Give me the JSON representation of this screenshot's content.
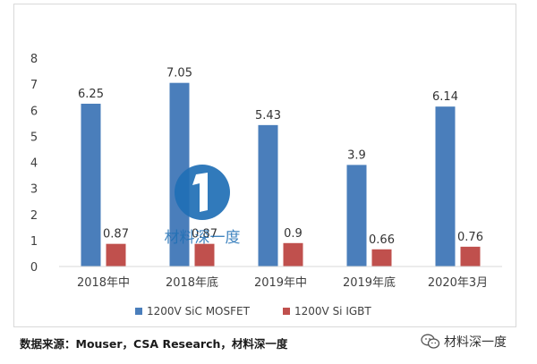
{
  "chart_data": {
    "type": "bar",
    "categories": [
      "2018年中",
      "2018年底",
      "2019年中",
      "2019年底",
      "2020年3月"
    ],
    "series": [
      {
        "name": "1200V SiC MOSFET",
        "values": [
          6.25,
          7.05,
          5.43,
          3.9,
          6.14
        ],
        "color": "#4a7ebb"
      },
      {
        "name": "1200V Si IGBT",
        "values": [
          0.87,
          0.87,
          0.9,
          0.66,
          0.76
        ],
        "color": "#c0504d"
      }
    ],
    "data_labels": [
      [
        "6.25",
        "7.05",
        "5.43",
        "3.9",
        "6.14"
      ],
      [
        "0.87",
        "0.87",
        "0.9",
        "0.66",
        "0.76"
      ]
    ],
    "ylim": [
      0,
      8
    ],
    "yticks": [
      "0",
      "1",
      "2",
      "3",
      "4",
      "5",
      "6",
      "7",
      "8"
    ],
    "grid": false,
    "legend_position": "bottom"
  },
  "watermark": {
    "text": "材料深一度",
    "logo_color": "#1f6fb5"
  },
  "source_note": "数据来源：Mouser，CSA Research，材料深一度",
  "wechat_account": {
    "icon": "wechat-icon",
    "name": "材料深一度"
  }
}
